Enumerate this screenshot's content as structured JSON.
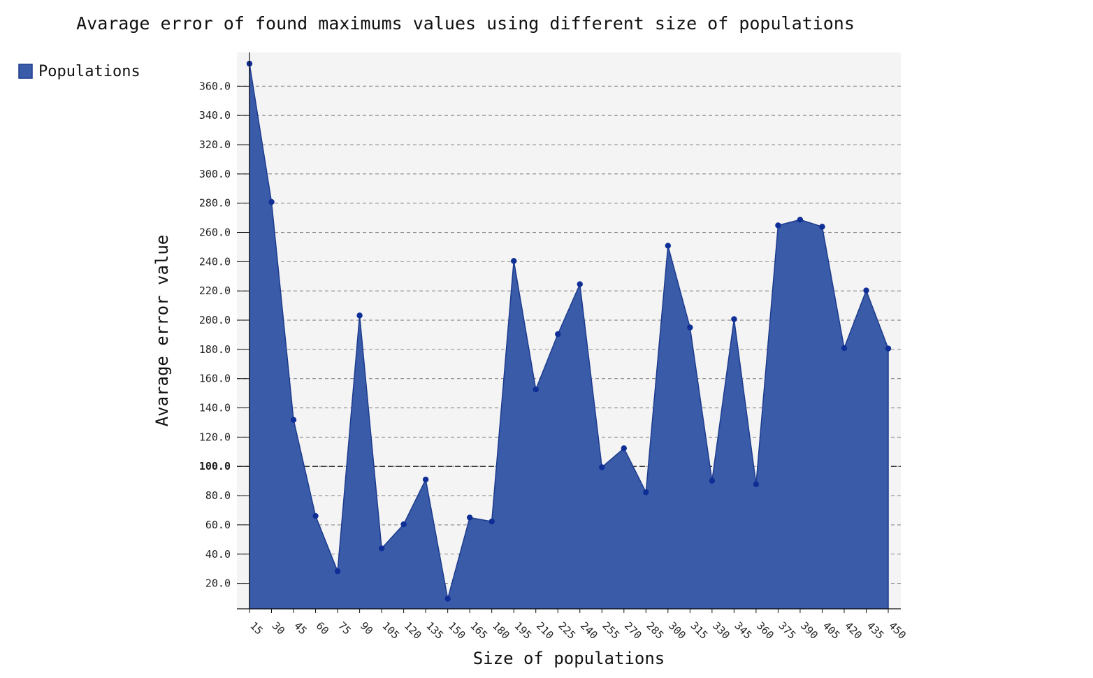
{
  "chart_data": {
    "type": "area",
    "title": "Avarage error of found maximums values using different size of populations",
    "xlabel": "Size of populations",
    "ylabel": "Avarage error value",
    "legend": {
      "position": "top-left",
      "entries": [
        "Populations"
      ]
    },
    "grid": true,
    "x": [
      15,
      30,
      45,
      60,
      75,
      90,
      105,
      120,
      135,
      150,
      165,
      180,
      195,
      210,
      225,
      240,
      255,
      270,
      285,
      300,
      315,
      330,
      345,
      360,
      375,
      390,
      405,
      420,
      435,
      450
    ],
    "series": [
      {
        "name": "Populations",
        "color": "#3a5ca8",
        "stroke": "#1c3a8e",
        "values": [
          375.4,
          280.8,
          131.8,
          66.1,
          28.3,
          203.2,
          43.9,
          60.4,
          91.0,
          9.5,
          65.0,
          62.3,
          240.5,
          152.6,
          190.4,
          224.6,
          99.4,
          112.4,
          82.3,
          250.9,
          195.0,
          90.2,
          200.7,
          87.8,
          264.8,
          268.7,
          263.9,
          180.9,
          220.3,
          180.6
        ]
      }
    ],
    "ylim": [
      2.6,
      383.1
    ],
    "y_ticks": [
      "20.0",
      "40.0",
      "60.0",
      "80.0",
      "100.0",
      "120.0",
      "140.0",
      "160.0",
      "180.0",
      "200.0",
      "220.0",
      "240.0",
      "260.0",
      "280.0",
      "300.0",
      "320.0",
      "340.0",
      "360.0"
    ],
    "reference_line": {
      "y": 100.0,
      "label": "100.0"
    }
  }
}
